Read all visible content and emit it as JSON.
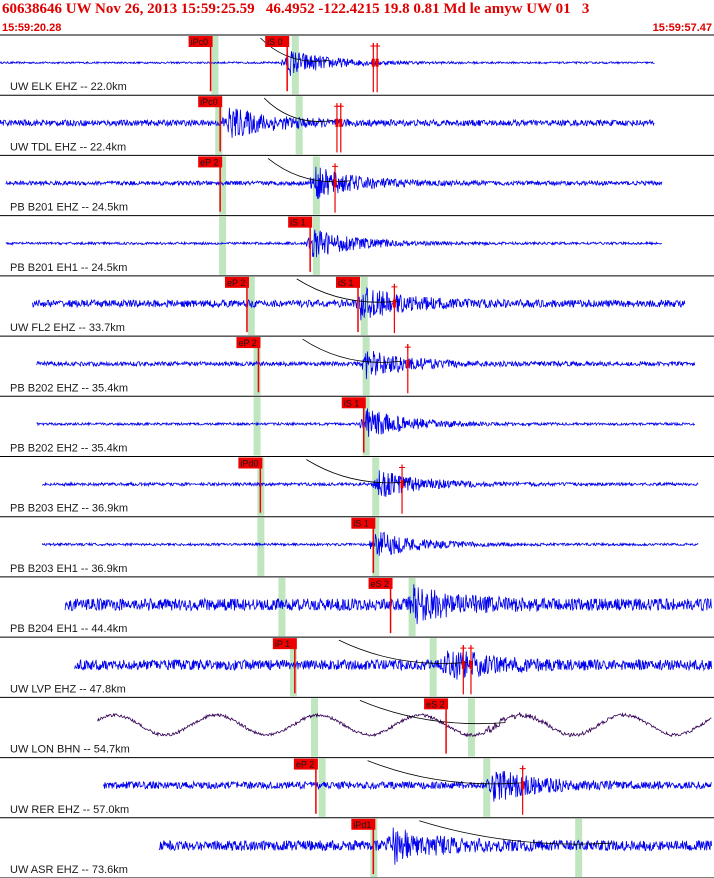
{
  "header": {
    "title": "60638646 UW Nov 26, 2013 15:59:25.59   46.4952 -122.4215 19.8 0.81 Md le amyw UW 01   3",
    "time_start": "15:59:20.28",
    "time_end": "15:59:57.47"
  },
  "colors": {
    "trace": "#0000ee",
    "trace_long_period": "#330055",
    "pick": "#ee0000",
    "window": "#bfe6bf",
    "divider": "#000000"
  },
  "chart_data": {
    "type": "line",
    "x_range": [
      0,
      37.19
    ],
    "x_unit": "seconds after 15:59:20.28",
    "grid": false,
    "traces": [
      {
        "label": "UW ELK EHZ -- 22.0km",
        "start": 0.0,
        "end": 34.2,
        "event": 15.0,
        "amp": 0.45,
        "noise": 0.03,
        "long_period": false,
        "picks": [
          {
            "label": "iPc0",
            "t": 11.0
          },
          {
            "label": "iS 0",
            "t": 15.0
          }
        ],
        "theory": [
          11.2,
          15.4
        ],
        "amp_marks": [
          19.5,
          19.7
        ]
      },
      {
        "label": "UW TDL EHZ -- 22.4km",
        "start": 0.0,
        "end": 34.2,
        "event": 11.9,
        "amp": 0.5,
        "noise": 0.1,
        "long_period": false,
        "picks": [
          {
            "label": "iPc0",
            "t": 11.5
          }
        ],
        "theory": [
          11.4,
          15.6
        ],
        "amp_marks": [
          17.6,
          17.8
        ]
      },
      {
        "label": "PB B201 EHZ -- 24.5km",
        "start": 0.3,
        "end": 34.6,
        "event": 16.5,
        "amp": 0.5,
        "noise": 0.07,
        "long_period": false,
        "picks": [
          {
            "label": "eP 2",
            "t": 11.5
          }
        ],
        "theory": [
          11.6,
          16.5
        ],
        "amp_marks": [
          17.5
        ]
      },
      {
        "label": "PB B201 EH1 -- 24.5km",
        "start": 0.3,
        "end": 34.6,
        "event": 16.3,
        "amp": 0.5,
        "noise": 0.04,
        "long_period": false,
        "picks": [
          {
            "label": "iS 1",
            "t": 16.2
          }
        ],
        "theory": [
          11.6,
          16.5
        ],
        "amp_marks": []
      },
      {
        "label": "UW FL2 EHZ -- 33.7km",
        "start": 1.7,
        "end": 35.8,
        "event": 18.8,
        "amp": 0.5,
        "noise": 0.12,
        "long_period": false,
        "picks": [
          {
            "label": "eP 2",
            "t": 12.9
          },
          {
            "label": "iS 1",
            "t": 18.7
          }
        ],
        "theory": [
          13.1,
          19.0
        ],
        "amp_marks": [
          20.6
        ]
      },
      {
        "label": "PB B202 EHZ -- 35.4km",
        "start": 1.9,
        "end": 36.3,
        "event": 19.1,
        "amp": 0.45,
        "noise": 0.07,
        "long_period": false,
        "picks": [
          {
            "label": "eP 2",
            "t": 13.5
          }
        ],
        "theory": [
          13.4,
          19.1
        ],
        "amp_marks": [
          21.3
        ]
      },
      {
        "label": "PB B202 EH2 -- 35.4km",
        "start": 1.9,
        "end": 36.3,
        "event": 19.1,
        "amp": 0.5,
        "noise": 0.04,
        "long_period": false,
        "picks": [
          {
            "label": "iS 1",
            "t": 19.0
          }
        ],
        "theory": [
          13.4,
          19.1
        ],
        "amp_marks": []
      },
      {
        "label": "PB B203 EHZ -- 36.9km",
        "start": 2.2,
        "end": 36.5,
        "event": 19.7,
        "amp": 0.5,
        "noise": 0.05,
        "long_period": false,
        "picks": [
          {
            "label": "iPd0",
            "t": 13.6
          }
        ],
        "theory": [
          13.6,
          19.6
        ],
        "amp_marks": [
          21.0
        ]
      },
      {
        "label": "PB B203 EH1 -- 36.9km",
        "start": 2.2,
        "end": 36.5,
        "event": 19.6,
        "amp": 0.45,
        "noise": 0.04,
        "long_period": false,
        "picks": [
          {
            "label": "iS 1",
            "t": 19.5
          }
        ],
        "theory": [
          13.6,
          19.6
        ],
        "amp_marks": []
      },
      {
        "label": "PB B204 EH1 -- 44.4km",
        "start": 3.4,
        "end": 37.6,
        "event": 21.6,
        "amp": 0.5,
        "noise": 0.2,
        "long_period": false,
        "picks": [
          {
            "label": "eS 2",
            "t": 20.4
          }
        ],
        "theory": [
          14.7,
          21.5
        ],
        "amp_marks": []
      },
      {
        "label": "UW LVP EHZ -- 47.8km",
        "start": 3.9,
        "end": 38.2,
        "event": 23.3,
        "amp": 0.5,
        "noise": 0.17,
        "long_period": false,
        "picks": [
          {
            "label": "iP 1",
            "t": 15.4
          }
        ],
        "theory": [
          15.3,
          22.6
        ],
        "amp_marks": [
          24.2,
          24.6
        ]
      },
      {
        "label": "UW LON BHN -- 54.7km",
        "start": 5.1,
        "end": 39.3,
        "event": 25.5,
        "amp": 0.1,
        "noise": 0.05,
        "long_period": true,
        "picks": [
          {
            "label": "eS 2",
            "t": 23.3
          }
        ],
        "theory": [
          16.4,
          24.6
        ],
        "amp_marks": []
      },
      {
        "label": "UW RER EHZ -- 57.0km",
        "start": 5.4,
        "end": 39.7,
        "event": 25.7,
        "amp": 0.5,
        "noise": 0.12,
        "long_period": false,
        "picks": [
          {
            "label": "eP 2",
            "t": 16.5
          }
        ],
        "theory": [
          16.8,
          25.4
        ],
        "amp_marks": [
          27.3
        ]
      },
      {
        "label": "UW ASR EHZ -- 73.6km",
        "start": 8.3,
        "end": 42.6,
        "event": 20.5,
        "amp": 0.5,
        "noise": 0.17,
        "long_period": false,
        "picks": [
          {
            "label": "iPd1",
            "t": 19.5
          }
        ],
        "theory": [
          19.5,
          30.2
        ],
        "amp_marks": []
      }
    ]
  }
}
